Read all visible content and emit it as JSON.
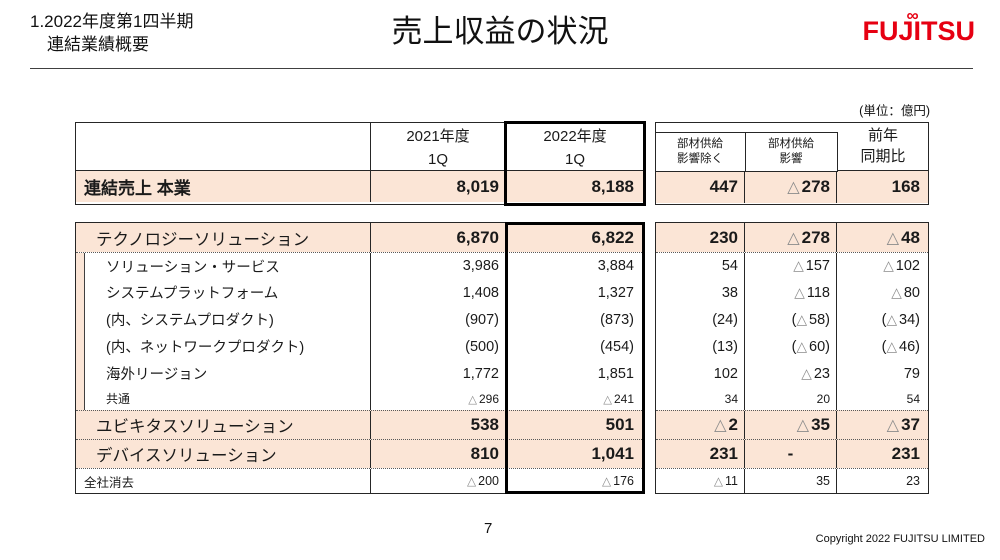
{
  "slide": {
    "section_label": {
      "line1": "1.2022年度第1四半期",
      "line2": "連結業績概要"
    },
    "title": "売上収益の状況",
    "logo_text": "FUJITSU",
    "unit_note": "(単位：億円)",
    "footer": {
      "page_number": "7",
      "copyright": "Copyright 2022 FUJITSU LIMITED"
    }
  },
  "colors": {
    "accent_pink": "#fbe5d6",
    "logo_red": "#e60012",
    "triangle_gray": "#8c8c8c"
  },
  "table": {
    "col_headers": {
      "fy2021_year": "2021年度",
      "fy2021_q": "1Q",
      "fy2022_year": "2022年度",
      "fy2022_q": "1Q",
      "ex_supply_line1": "部材供給",
      "ex_supply_line2": "影響除く",
      "supply_line1": "部材供給",
      "supply_line2": "影響",
      "yoy_line1": "前年",
      "yoy_line2": "同期比"
    },
    "total_row": {
      "label": "連結売上 本業",
      "fy2021": "8,019",
      "fy2022": "8,188",
      "ex_supply": "447",
      "supply": "△ 278",
      "yoy": "168"
    },
    "rows": [
      {
        "label": "テクノロジーソリューション",
        "fy2021": "6,870",
        "fy2022": "6,822",
        "ex_supply": "230",
        "supply": "△ 278",
        "yoy": "△ 48",
        "variant": "group",
        "dotted_top": false
      },
      {
        "label": "ソリューション・サービス",
        "fy2021": "3,986",
        "fy2022": "3,884",
        "ex_supply": "54",
        "supply": "△ 157",
        "yoy": "△ 102",
        "variant": "sub",
        "dotted_top": true
      },
      {
        "label": "システムプラットフォーム",
        "fy2021": "1,408",
        "fy2022": "1,327",
        "ex_supply": "38",
        "supply": "△ 118",
        "yoy": "△ 80",
        "variant": "sub",
        "dotted_top": false
      },
      {
        "label": "(内、システムプロダクト)",
        "fy2021": "(907)",
        "fy2022": "(873)",
        "ex_supply": "(24)",
        "supply": "(△58)",
        "yoy": "(△34)",
        "variant": "sub",
        "dotted_top": false
      },
      {
        "label": "(内、ネットワークプロダクト)",
        "fy2021": "(500)",
        "fy2022": "(454)",
        "ex_supply": "(13)",
        "supply": "(△60)",
        "yoy": "(△46)",
        "variant": "sub",
        "dotted_top": false
      },
      {
        "label": "海外リージョン",
        "fy2021": "1,772",
        "fy2022": "1,851",
        "ex_supply": "102",
        "supply": "△ 23",
        "yoy": "79",
        "variant": "sub",
        "dotted_top": false
      },
      {
        "label": "共通",
        "fy2021": "△ 296",
        "fy2022": "△ 241",
        "ex_supply": "34",
        "supply": "20",
        "yoy": "54",
        "variant": "common",
        "dotted_top": false
      },
      {
        "label": "ユビキタスソリューション",
        "fy2021": "538",
        "fy2022": "501",
        "ex_supply": "△ 2",
        "supply": "△ 35",
        "yoy": "△ 37",
        "variant": "group",
        "dotted_top": true
      },
      {
        "label": "デバイスソリューション",
        "fy2021": "810",
        "fy2022": "1,041",
        "ex_supply": "231",
        "supply": "-",
        "yoy": "231",
        "variant": "group",
        "dotted_top": true
      },
      {
        "label": "全社消去",
        "fy2021": "△ 200",
        "fy2022": "△ 176",
        "ex_supply": "△ 11",
        "supply": "35",
        "yoy": "23",
        "variant": "elim",
        "dotted_top": true
      }
    ]
  }
}
